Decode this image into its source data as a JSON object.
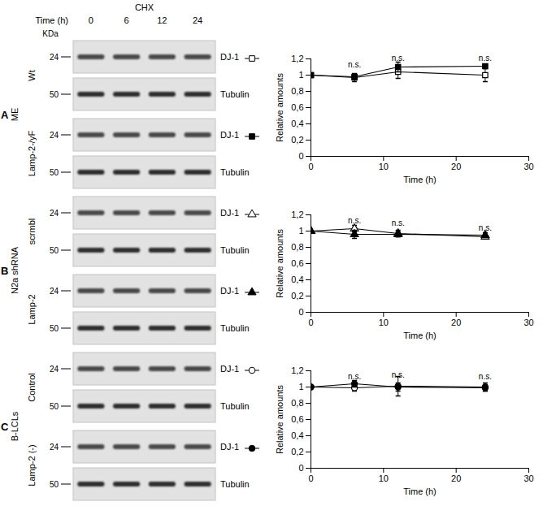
{
  "chart_data": [
    {
      "type": "line",
      "x_label": "Time (h)",
      "y_label": "Relative amounts",
      "x": [
        0,
        6,
        12,
        24
      ],
      "xlim": [
        0,
        30
      ],
      "xticks": [
        0,
        10,
        20,
        30
      ],
      "ylim": [
        0,
        1.2
      ],
      "yticks": [
        0,
        {
          "value": 0.2,
          "label": "0,2"
        },
        {
          "value": 0.4,
          "label": "0,4"
        },
        {
          "value": 0.6,
          "label": "0,6"
        },
        {
          "value": 0.8,
          "label": "0,8"
        },
        1,
        {
          "value": 1.2,
          "label": "1,2"
        }
      ],
      "series": [
        {
          "name": "Wt",
          "color": "#000000",
          "marker": "open square",
          "values": [
            1,
            0.97,
            1.04,
            1.0
          ],
          "errors": [
            0,
            0.05,
            0.08,
            0.08
          ]
        },
        {
          "name": "Lamp-2-/yF",
          "color": "#000000",
          "marker": "square",
          "values": [
            1,
            0.98,
            1.1,
            1.11
          ],
          "errors": [
            0,
            0.03,
            0.06,
            0.02
          ]
        }
      ],
      "annotations": [
        {
          "text": "n.s.",
          "x": 6,
          "y": 1.13
        },
        {
          "text": "n.s.",
          "x": 12,
          "y": 1.21
        },
        {
          "text": "n.s.",
          "x": 24,
          "y": 1.21
        }
      ]
    },
    {
      "type": "line",
      "x_label": "Time (h)",
      "y_label": "Relative amounts",
      "x": [
        0,
        6,
        12,
        24
      ],
      "xlim": [
        0,
        30
      ],
      "xticks": [
        0,
        10,
        20,
        30
      ],
      "ylim": [
        0,
        1.2
      ],
      "yticks": [
        0,
        {
          "value": 0.2,
          "label": "0,2"
        },
        {
          "value": 0.4,
          "label": "0,4"
        },
        {
          "value": 0.6,
          "label": "0,6"
        },
        {
          "value": 0.8,
          "label": "0,8"
        },
        1,
        {
          "value": 1.2,
          "label": "1,2"
        }
      ],
      "series": [
        {
          "name": "scrmbl",
          "color": "#000000",
          "marker": "open triangle",
          "values": [
            1,
            1.03,
            0.97,
            0.93
          ],
          "errors": [
            0,
            0.04,
            0.04,
            0.02
          ]
        },
        {
          "name": "Lamp-2",
          "color": "#000000",
          "marker": "triangle",
          "values": [
            1,
            0.96,
            0.96,
            0.95
          ],
          "errors": [
            0,
            0.05,
            0.03,
            0.03
          ]
        }
      ],
      "annotations": [
        {
          "text": "n.s.",
          "x": 6,
          "y": 1.13
        },
        {
          "text": "n.s.",
          "x": 12,
          "y": 1.1
        },
        {
          "text": "n.s.",
          "x": 24,
          "y": 1.04
        }
      ]
    },
    {
      "type": "line",
      "x_label": "Time (h)",
      "y_label": "Relative amounts",
      "x": [
        0,
        6,
        12,
        24
      ],
      "xlim": [
        0,
        30
      ],
      "xticks": [
        0,
        10,
        20,
        30
      ],
      "ylim": [
        0,
        1.2
      ],
      "yticks": [
        0,
        {
          "value": 0.2,
          "label": "0,2"
        },
        {
          "value": 0.4,
          "label": "0,4"
        },
        {
          "value": 0.6,
          "label": "0,6"
        },
        {
          "value": 0.8,
          "label": "0,8"
        },
        1,
        {
          "value": 1.2,
          "label": "1,2"
        }
      ],
      "series": [
        {
          "name": "Control",
          "color": "#000000",
          "marker": "open circle",
          "values": [
            1,
            0.99,
            1.01,
            1.0
          ],
          "errors": [
            0,
            0.04,
            0.12,
            0.05
          ]
        },
        {
          "name": "Lamp-2 (-)",
          "color": "#000000",
          "marker": "circle",
          "values": [
            1,
            1.04,
            1.0,
            0.99
          ],
          "errors": [
            0,
            0.04,
            0.05,
            0.04
          ]
        }
      ],
      "annotations": [
        {
          "text": "n.s.",
          "x": 6,
          "y": 1.13
        },
        {
          "text": "n.s.",
          "x": 12,
          "y": 1.15
        },
        {
          "text": "n.s.",
          "x": 24,
          "y": 1.13
        }
      ]
    }
  ],
  "blots": {
    "header": {
      "treatment": "CHX",
      "time_label": "Time (h)",
      "times": [
        0,
        6,
        12,
        24
      ],
      "mw_unit": "KDa"
    },
    "panels": [
      {
        "panel": "A",
        "group": "ME",
        "rows": [
          {
            "label": "Wt",
            "strips": [
              {
                "band": "DJ-1",
                "mw": 24
              },
              {
                "band": "Tubulin",
                "mw": 50
              }
            ]
          },
          {
            "label": "Lamp-2-/yF",
            "strips": [
              {
                "band": "DJ-1",
                "mw": 24
              },
              {
                "band": "Tubulin",
                "mw": 50
              }
            ]
          }
        ]
      },
      {
        "panel": "B",
        "group": "N2a shRNA",
        "rows": [
          {
            "label": "scrmbl",
            "strips": [
              {
                "band": "DJ-1",
                "mw": 24
              },
              {
                "band": "Tubulin",
                "mw": 50
              }
            ]
          },
          {
            "label": "Lamp-2",
            "strips": [
              {
                "band": "DJ-1",
                "mw": 24
              },
              {
                "band": "Tubulin",
                "mw": 50
              }
            ]
          }
        ]
      },
      {
        "panel": "C",
        "group": "B-LCLs",
        "rows": [
          {
            "label": "Control",
            "strips": [
              {
                "band": "DJ-1",
                "mw": 24
              },
              {
                "band": "Tubulin",
                "mw": 50
              }
            ]
          },
          {
            "label": "Lamp-2 (-)",
            "strips": [
              {
                "band": "DJ-1",
                "mw": 24
              },
              {
                "band": "Tubulin",
                "mw": 50
              }
            ]
          }
        ]
      }
    ]
  }
}
